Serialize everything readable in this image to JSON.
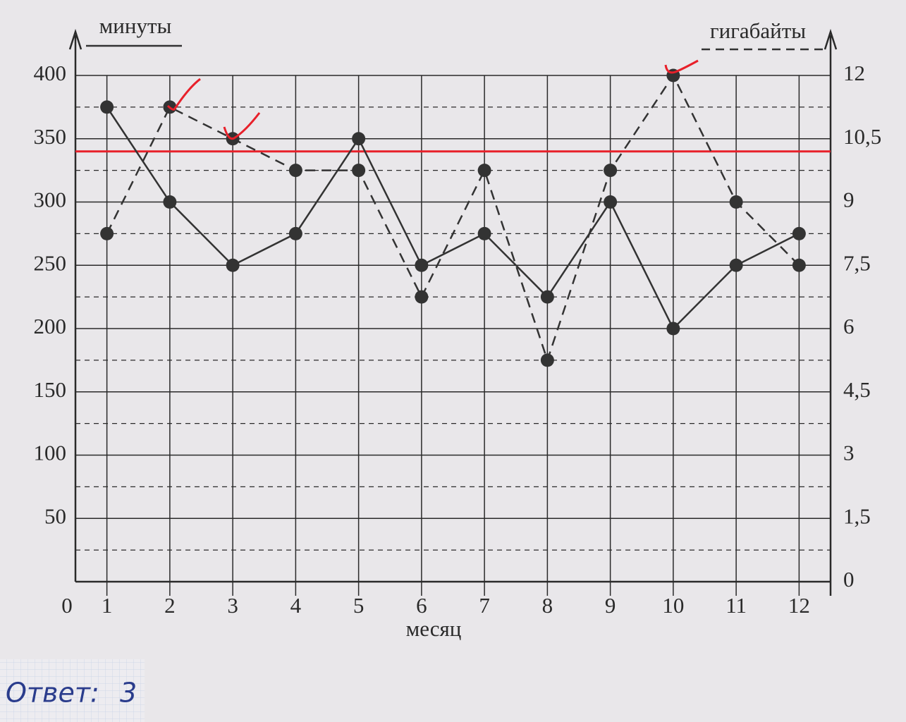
{
  "chart_data": {
    "type": "line",
    "x_label": "месяц",
    "origin_label": "0",
    "x": [
      1,
      2,
      3,
      4,
      5,
      6,
      7,
      8,
      9,
      10,
      11,
      12
    ],
    "xlim": [
      0.5,
      12.5
    ],
    "xticks": [
      1,
      2,
      3,
      4,
      5,
      6,
      7,
      8,
      9,
      10,
      11,
      12
    ],
    "ylim": [
      0,
      400
    ],
    "yticks": [
      50,
      100,
      150,
      200,
      250,
      300,
      350,
      400
    ],
    "y2lim": [
      0,
      12
    ],
    "y2ticks": [
      0,
      {
        "value": 1.5,
        "label": "1,5"
      },
      3,
      {
        "value": 4.5,
        "label": "4,5"
      },
      6,
      {
        "value": 7.5,
        "label": "7,5"
      },
      9,
      {
        "value": 10.5,
        "label": "10,5"
      },
      12
    ],
    "grid": true,
    "series": [
      {
        "name": "минуты",
        "color": "#333333",
        "dash": false,
        "values": [
          375,
          300,
          250,
          275,
          350,
          250,
          275,
          225,
          300,
          200,
          250,
          275
        ]
      },
      {
        "name": "гигабайты",
        "color": "#333333",
        "dash": true,
        "axis": "y2",
        "values": [
          8.25,
          11.25,
          10.5,
          9.75,
          9.75,
          6.75,
          9.75,
          5.25,
          9.75,
          12,
          9,
          7.5
        ]
      }
    ],
    "reference_line": {
      "value": 340,
      "color": "#e8202a"
    }
  },
  "answer": {
    "label": "Ответ:",
    "value": "3"
  }
}
